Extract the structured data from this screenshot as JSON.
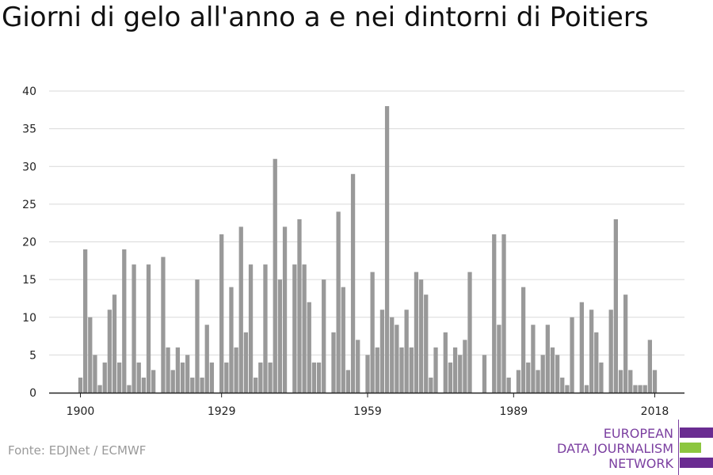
{
  "title": "Giorni di gelo all'anno a e nei dintorni di Poitiers",
  "source": "Fonte: EDJNet / ECMWF",
  "logo": {
    "line1": "EUROPEAN",
    "line2": "DATA JOURNALISM",
    "line3": "NETWORK",
    "colors": {
      "text": "#7b3fa0",
      "accent_purple": "#6a2c91",
      "accent_green": "#8cc63f"
    }
  },
  "colors": {
    "bar": "#999999",
    "grid": "#d9d9d9",
    "axis": "#222222",
    "tick_text": "#222222"
  },
  "chart_data": {
    "type": "bar",
    "x_start": 1900,
    "x_end": 2018,
    "x_ticks": [
      "1900",
      "1929",
      "1959",
      "1989",
      "2018"
    ],
    "y_ticks": [
      "0",
      "5",
      "10",
      "15",
      "20",
      "25",
      "30",
      "35",
      "40"
    ],
    "ylim": [
      0,
      40
    ],
    "grid": true,
    "xlabel": "",
    "ylabel": "",
    "values": [
      2,
      19,
      10,
      5,
      1,
      4,
      11,
      13,
      4,
      19,
      1,
      17,
      4,
      2,
      17,
      3,
      0,
      18,
      6,
      3,
      6,
      4,
      5,
      2,
      15,
      2,
      9,
      4,
      0,
      21,
      4,
      14,
      6,
      22,
      8,
      17,
      2,
      4,
      17,
      4,
      31,
      15,
      22,
      0,
      17,
      23,
      17,
      12,
      4,
      4,
      15,
      0,
      8,
      24,
      14,
      3,
      29,
      7,
      0,
      5,
      16,
      6,
      11,
      38,
      10,
      9,
      6,
      11,
      6,
      16,
      15,
      13,
      2,
      6,
      0,
      8,
      4,
      6,
      5,
      7,
      16,
      0,
      0,
      5,
      0,
      21,
      9,
      21,
      2,
      0,
      3,
      14,
      4,
      9,
      3,
      5,
      9,
      6,
      5,
      2,
      1,
      10,
      0,
      12,
      1,
      11,
      8,
      4,
      0,
      11,
      23,
      3,
      13,
      3,
      1,
      1,
      1,
      7,
      3
    ]
  }
}
